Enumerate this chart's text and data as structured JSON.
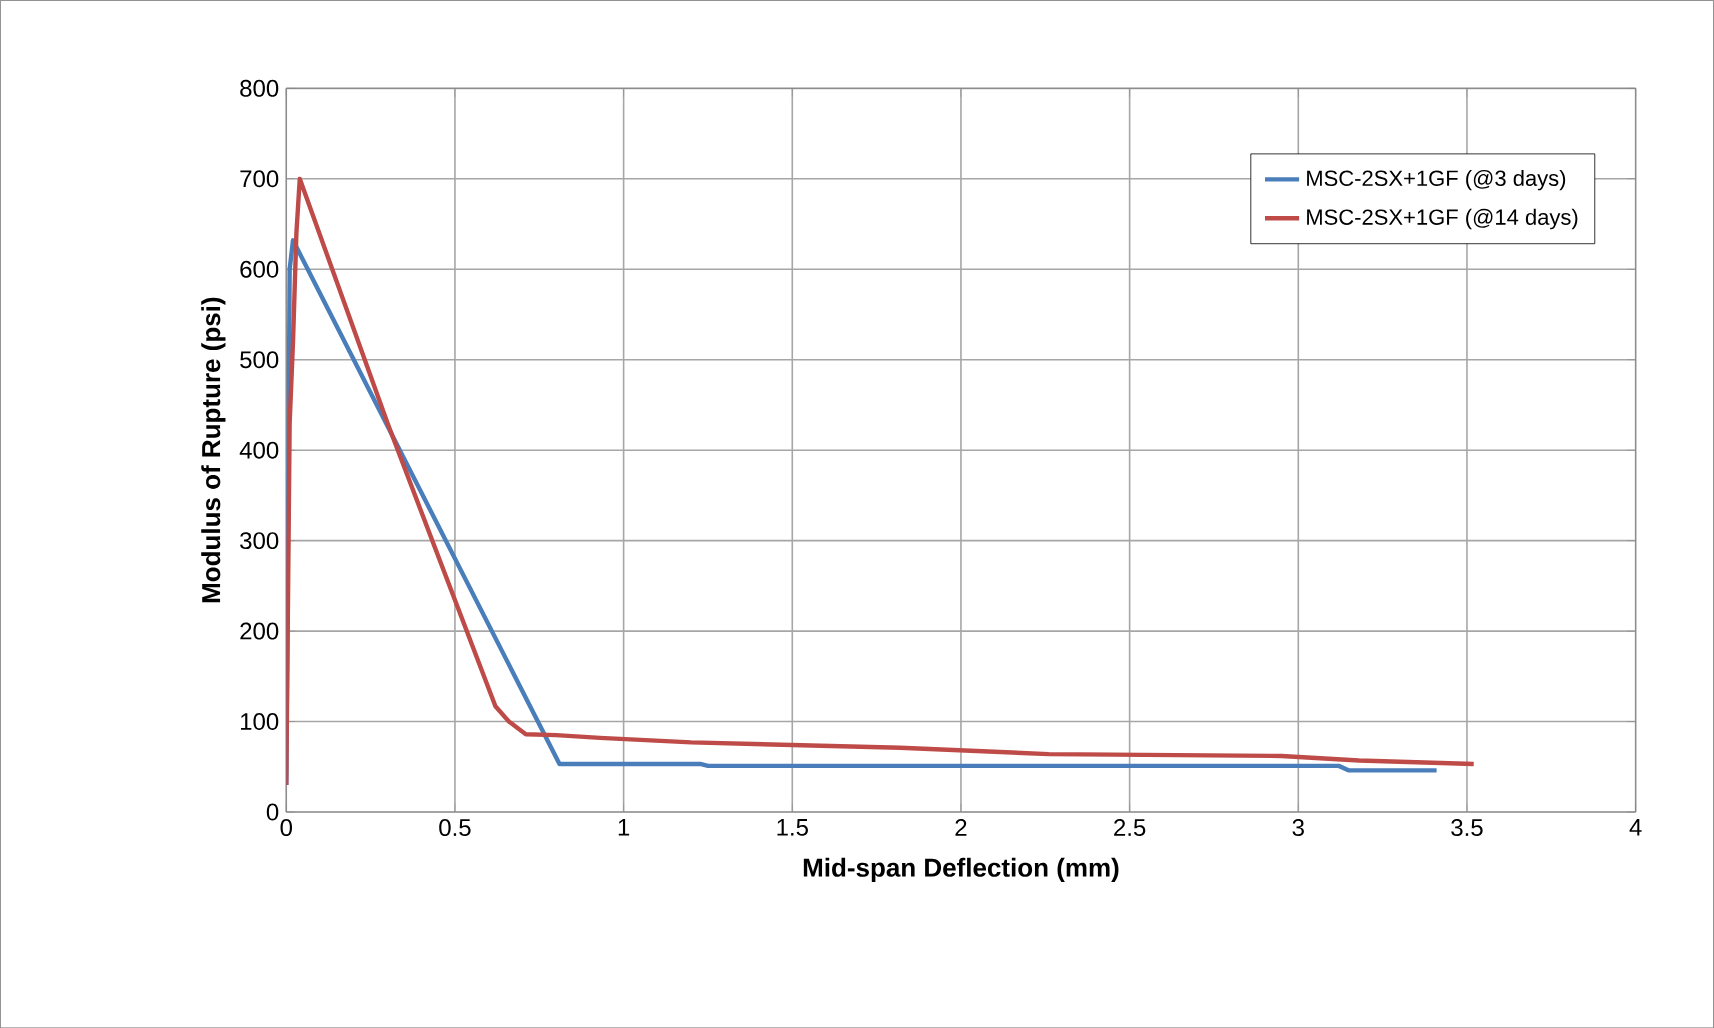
{
  "chart_data": {
    "type": "line",
    "xlabel": "Mid-span Deflection (mm)",
    "ylabel": "Modulus of Rupture (psi)",
    "xlim": [
      0,
      4
    ],
    "ylim": [
      0,
      800
    ],
    "xticks": [
      0,
      0.5,
      1,
      1.5,
      2,
      2.5,
      3,
      3.5,
      4
    ],
    "yticks": [
      0,
      100,
      200,
      300,
      400,
      500,
      600,
      700,
      800
    ],
    "grid": true,
    "legend": "top right",
    "marker": "none",
    "line_style": "solid",
    "series": [
      {
        "name": "MSC-2SX+1GF (@3 days)",
        "color": "#4a7ebb",
        "x": [
          0,
          0.005,
          0.01,
          0.02,
          0.81,
          1.23,
          1.25,
          3.12,
          3.15,
          3.41
        ],
        "values": [
          30,
          300,
          600,
          632,
          53,
          53,
          51,
          51,
          46,
          46
        ]
      },
      {
        "name": "MSC-2SX+1GF (@14 days)",
        "color": "#be4b48",
        "x": [
          0,
          0.01,
          0.02,
          0.03,
          0.04,
          0.3,
          0.62,
          0.66,
          0.71,
          0.8,
          0.93,
          1.2,
          1.82,
          2.26,
          2.95,
          3.18,
          3.52
        ],
        "values": [
          30,
          430,
          520,
          640,
          700,
          430,
          117,
          100,
          86,
          85,
          82,
          77,
          71,
          64,
          62,
          57,
          53
        ]
      }
    ]
  }
}
